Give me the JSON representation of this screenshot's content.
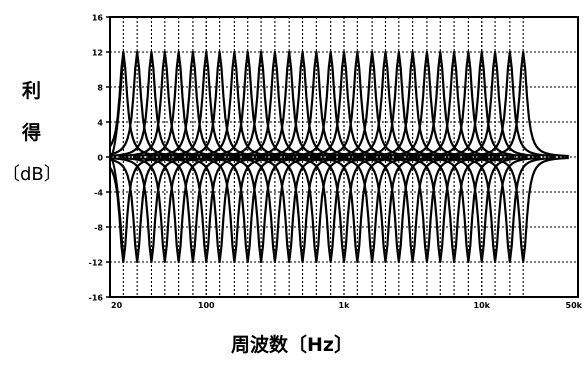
{
  "chart_data": {
    "type": "line",
    "title": "",
    "ylabel_chars": [
      "利",
      "得",
      "〔dB〕"
    ],
    "xlabel": "周波数〔Hz〕",
    "x_scale": "log",
    "xlim": [
      20,
      50000
    ],
    "ylim": [
      -16,
      16
    ],
    "y_ticks": [
      16,
      12,
      8,
      4,
      0,
      -4,
      -8,
      -12,
      -16
    ],
    "y_tick_labels": [
      "16",
      "12",
      "8",
      "4",
      "0",
      "-4",
      "-8",
      "-12",
      "-16"
    ],
    "x_tick_labels": [
      {
        "value": 20,
        "label": "20"
      },
      {
        "value": 100,
        "label": "100"
      },
      {
        "value": 1000,
        "label": "1k"
      },
      {
        "value": 10000,
        "label": "10k"
      },
      {
        "value": 50000,
        "label": "50k"
      }
    ],
    "grid": true,
    "band_centers_hz": [
      25,
      31.5,
      40,
      50,
      63,
      80,
      100,
      125,
      160,
      200,
      250,
      315,
      400,
      500,
      630,
      800,
      1000,
      1250,
      1600,
      2000,
      2500,
      3150,
      4000,
      5000,
      6300,
      8000,
      10000,
      12500,
      16000,
      20000
    ],
    "series": [
      {
        "values_note": "boost curves: each band reaches +12 dB at its center frequency",
        "peak_db": 12,
        "crossover_db": 3.5
      },
      {
        "values_note": "cut curves: each band reaches -12 dB at its center frequency",
        "peak_db": -12,
        "crossover_db": -3.5
      }
    ]
  }
}
